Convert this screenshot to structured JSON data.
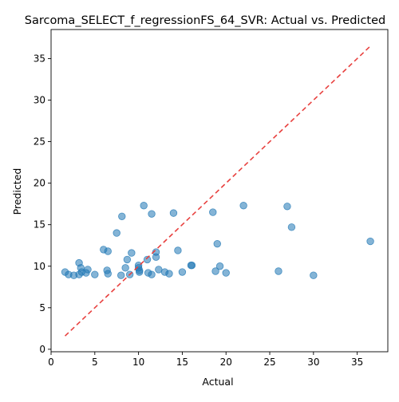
{
  "chart_data": {
    "type": "scatter",
    "title": "Sarcoma_SELECT_f_regressionFS_64_SVR: Actual vs. Predicted",
    "xlabel": "Actual",
    "ylabel": "Predicted",
    "xlim": [
      0,
      38.5
    ],
    "ylim": [
      -0.3,
      38.5
    ],
    "xticks": [
      0,
      5,
      10,
      15,
      20,
      25,
      30,
      35
    ],
    "yticks": [
      0,
      5,
      10,
      15,
      20,
      25,
      30,
      35
    ],
    "grid": false,
    "point_color": "#1f77b4",
    "reference_line": {
      "x": [
        1.6,
        36.5
      ],
      "y": [
        1.6,
        36.5
      ],
      "color": "#e8413f",
      "style": "dashed"
    },
    "x": [
      1.6,
      2.0,
      2.6,
      3.2,
      3.2,
      3.4,
      3.5,
      4.0,
      4.2,
      5.0,
      6.0,
      6.4,
      6.5,
      6.5,
      7.5,
      8.0,
      8.1,
      8.5,
      8.7,
      9.0,
      9.2,
      10.0,
      10.0,
      10.1,
      10.1,
      10.6,
      11.0,
      11.1,
      11.5,
      11.5,
      12.0,
      12.0,
      12.3,
      13.0,
      13.5,
      14.0,
      14.5,
      15.0,
      16.0,
      16.1,
      18.5,
      18.8,
      19.0,
      19.3,
      20.0,
      22.0,
      26.0,
      27.0,
      27.5,
      30.0,
      36.5
    ],
    "y": [
      9.3,
      9.0,
      8.9,
      10.4,
      9.0,
      9.8,
      9.3,
      9.2,
      9.6,
      9.0,
      12.0,
      9.5,
      11.8,
      9.1,
      14.0,
      8.9,
      16.0,
      9.8,
      10.8,
      9.0,
      11.6,
      9.8,
      10.1,
      9.3,
      9.5,
      17.3,
      10.8,
      9.2,
      16.3,
      9.0,
      11.7,
      11.1,
      9.6,
      9.3,
      9.1,
      16.4,
      11.9,
      9.3,
      10.1,
      10.1,
      16.5,
      9.4,
      12.7,
      10.0,
      9.2,
      17.3,
      9.4,
      17.2,
      14.7,
      8.9,
      13.0
    ]
  }
}
